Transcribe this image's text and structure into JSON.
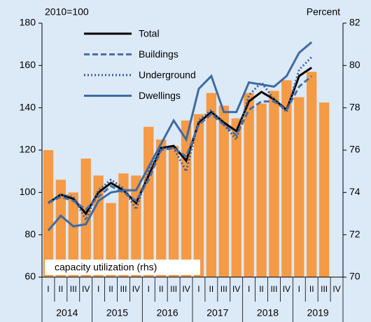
{
  "chart_data": {
    "type": "combo",
    "y_label": "2010=100",
    "y2_label": "Percent",
    "categories": [
      "I",
      "II",
      "III",
      "IV",
      "I",
      "II",
      "III",
      "IV",
      "I",
      "II",
      "III",
      "IV",
      "I",
      "II",
      "III",
      "IV",
      "I",
      "II",
      "III",
      "IV",
      "I",
      "II",
      "III",
      "IV"
    ],
    "years": [
      "2014",
      "2015",
      "2016",
      "2017",
      "2018",
      "2019"
    ],
    "ylim": [
      60,
      180
    ],
    "yticks": [
      60,
      80,
      100,
      120,
      140,
      160,
      180
    ],
    "y2lim": [
      70,
      82
    ],
    "y2ticks": [
      70,
      72,
      74,
      76,
      78,
      80,
      82
    ],
    "legend": "upper left",
    "series": [
      {
        "name": "capacity utilization (rhs)",
        "type": "bar",
        "axis": "y2",
        "color": "#f59a45",
        "values": [
          76,
          74.6,
          74,
          75.6,
          74.8,
          73.5,
          74.9,
          74.8,
          77.1,
          76.5,
          76.2,
          77.4,
          77.7,
          78.7,
          78.1,
          77.5,
          78.7,
          78.2,
          78.8,
          79.3,
          78.5,
          79.7,
          78.25,
          null
        ]
      },
      {
        "name": "Total",
        "type": "line",
        "style": "solid",
        "color": "#000000",
        "values": [
          95,
          99,
          97,
          90,
          100,
          104.5,
          101,
          95,
          108,
          121,
          122,
          115,
          133,
          138,
          133,
          129,
          143,
          147.5,
          144,
          139,
          155,
          159,
          null,
          null
        ]
      },
      {
        "name": "Buildings",
        "type": "line",
        "style": "dashed",
        "color": "#4a6fa5",
        "values": [
          95,
          98,
          96,
          92,
          98,
          103,
          100,
          96,
          106,
          120,
          121,
          117,
          132,
          137,
          132,
          127,
          139,
          143,
          143,
          139,
          150,
          155,
          null,
          null
        ]
      },
      {
        "name": "Underground",
        "type": "line",
        "style": "dotted",
        "color": "#3b5f9a",
        "values": [
          95,
          99,
          98,
          87,
          101,
          106,
          102,
          92,
          110,
          121,
          121,
          110,
          134,
          139,
          132,
          125,
          146,
          152,
          144,
          138,
          158,
          164,
          null,
          null
        ]
      },
      {
        "name": "Dwellings",
        "type": "line",
        "style": "solid",
        "color": "#3e6aa3",
        "values": [
          82,
          89,
          84,
          85,
          96,
          100,
          101,
          101,
          112,
          123,
          134,
          125,
          149,
          155,
          138,
          138,
          152,
          151,
          150,
          155,
          166,
          171,
          null,
          null
        ]
      }
    ]
  }
}
